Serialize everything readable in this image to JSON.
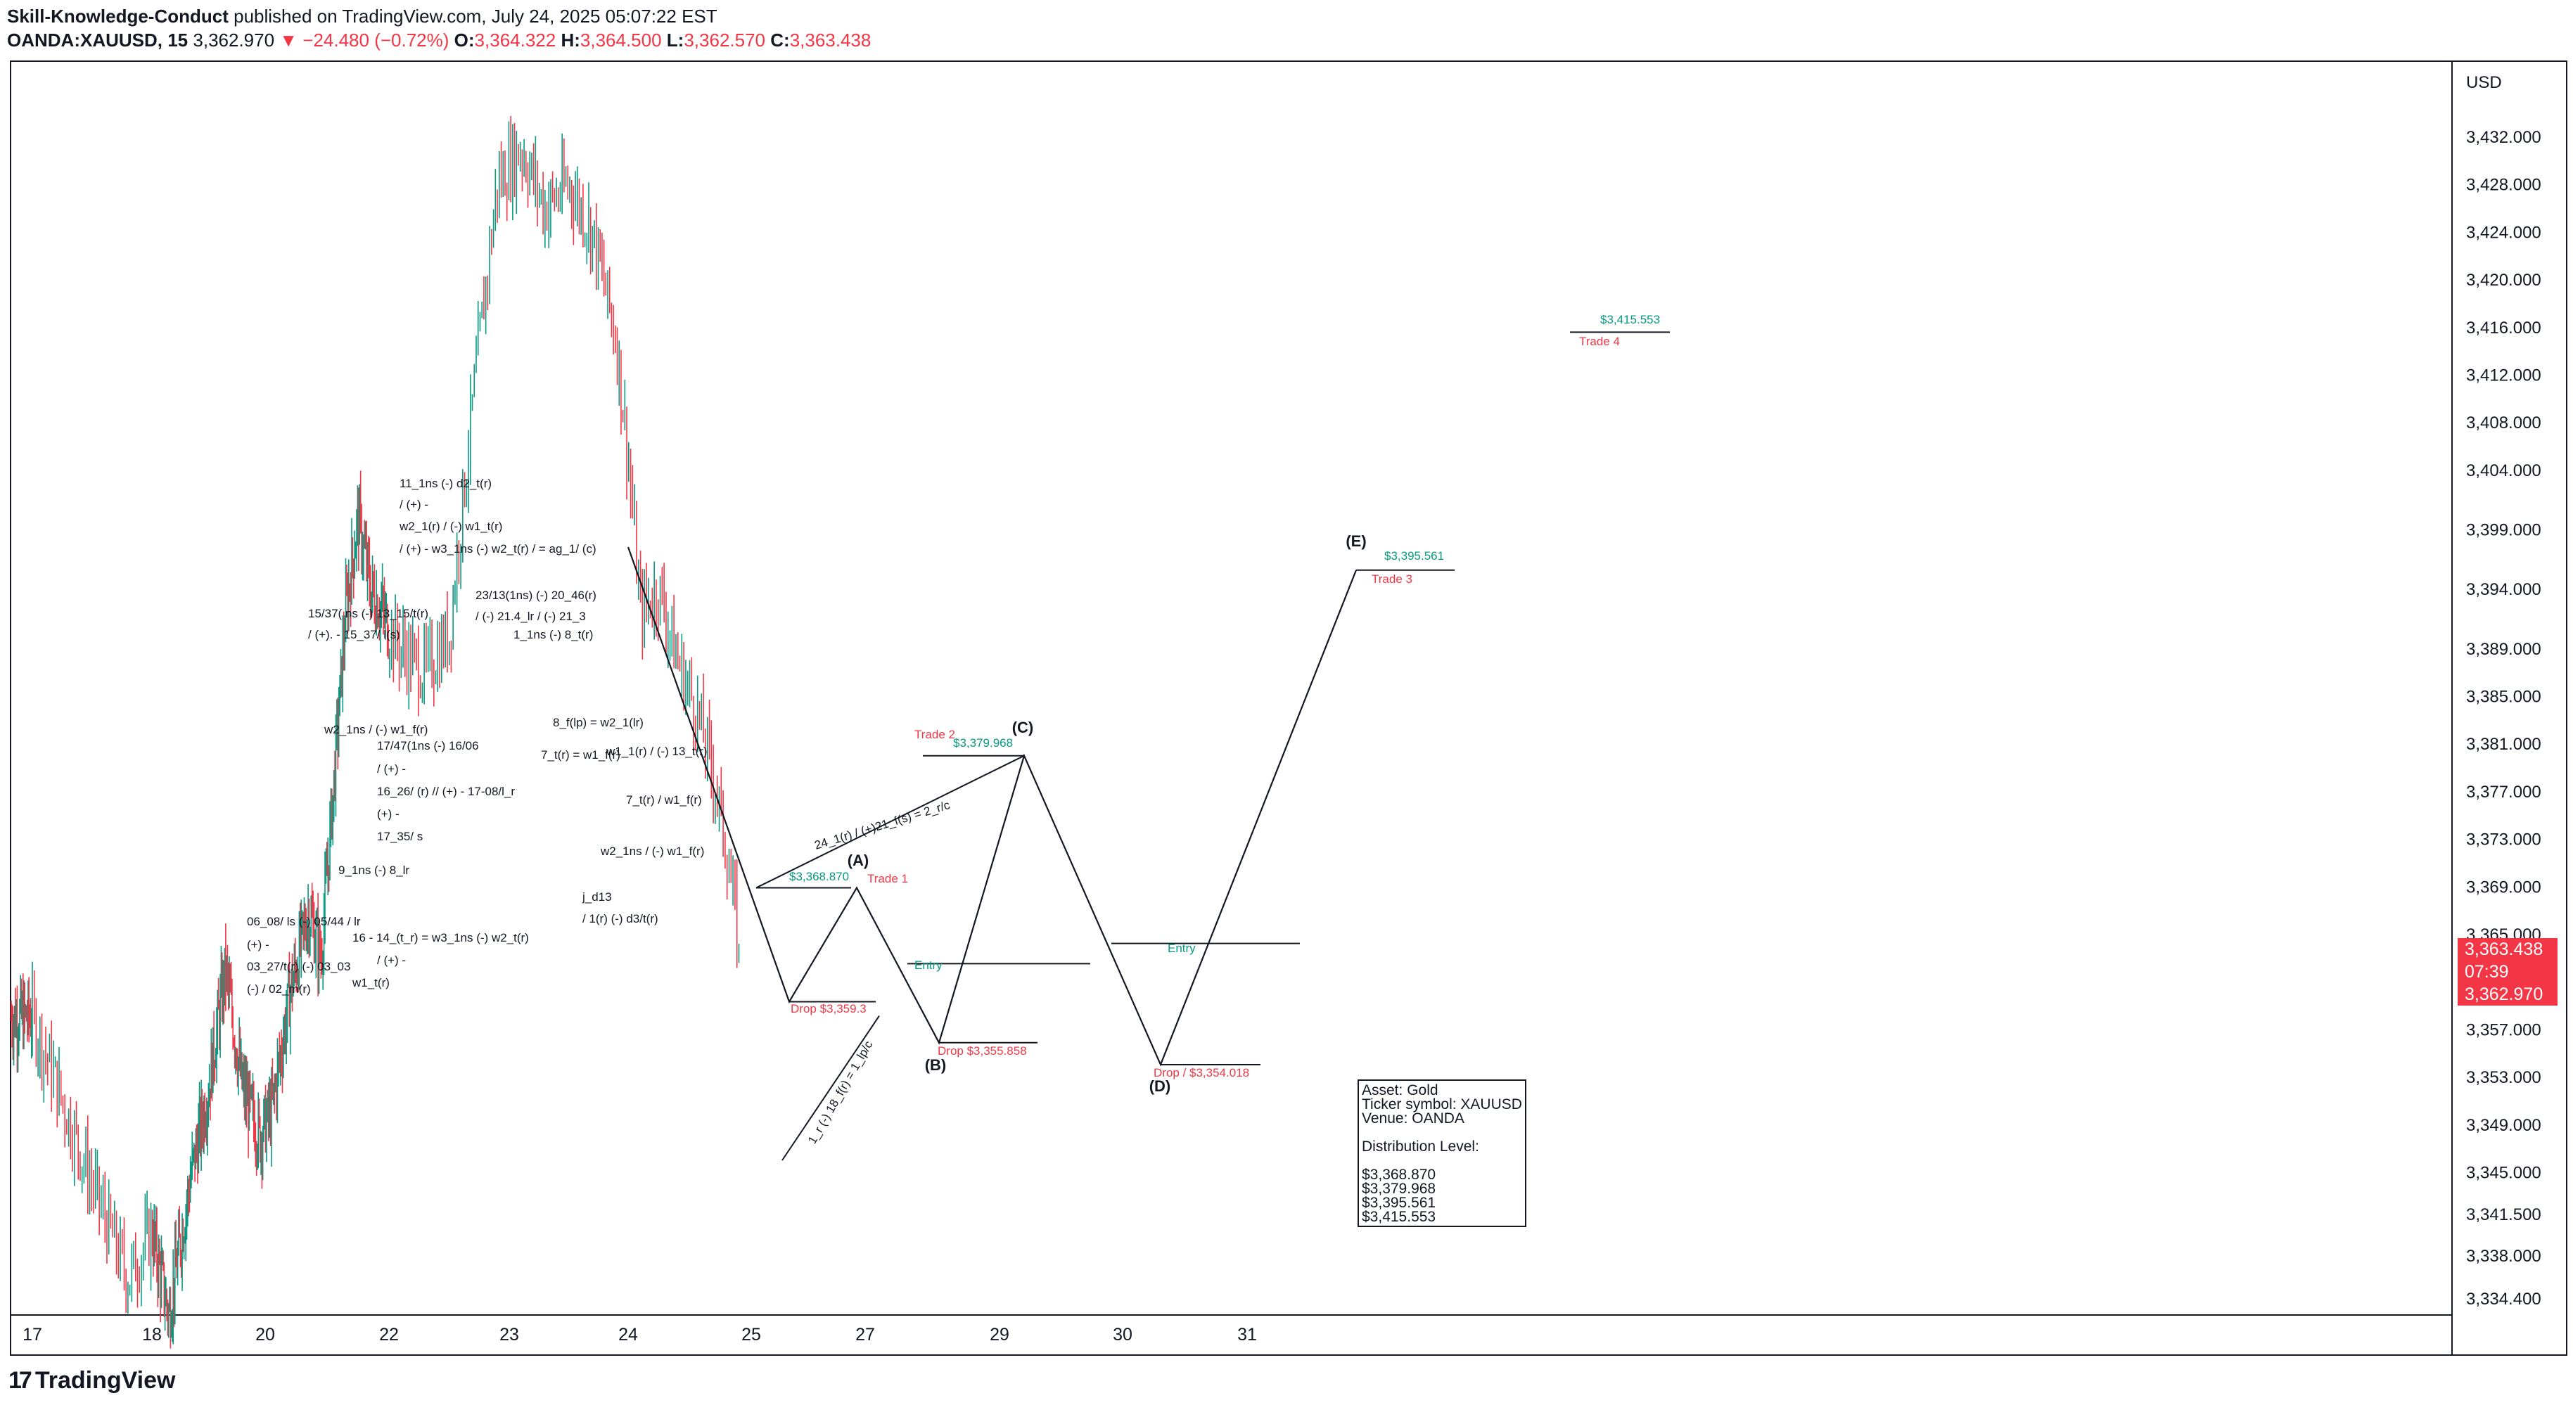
{
  "header": {
    "author": "Skill-Knowledge-Conduct",
    "published": " published on TradingView.com, July 24, 2025 05:07:22 EST",
    "symbol": "OANDA:XAUUSD, 15",
    "price": "3,362.970",
    "change": "−24.480 (−0.72%)",
    "open_label": "O:",
    "open": "3,364.322",
    "high_label": "H:",
    "high": "3,364.500",
    "low_label": "L:",
    "low": "3,362.570",
    "close_label": "C:",
    "close": "3,363.438"
  },
  "price_axis": {
    "currency": "USD",
    "labels": [
      "3,432.000",
      "3,428.000",
      "3,424.000",
      "3,420.000",
      "3,416.000",
      "3,412.000",
      "3,408.000",
      "3,404.000",
      "3,399.000",
      "3,394.000",
      "3,389.000",
      "3,385.000",
      "3,381.000",
      "3,377.000",
      "3,373.000",
      "3,369.000",
      "3,365.000",
      "3,357.000",
      "3,353.000",
      "3,349.000",
      "3,345.000",
      "3,341.500",
      "3,338.000",
      "3,334.400"
    ],
    "last_price": "3,363.438",
    "countdown": "07:39",
    "bid_price": "3,362.970"
  },
  "time_axis": {
    "labels": [
      "17",
      "18",
      "20",
      "22",
      "23",
      "24",
      "25",
      "27",
      "29",
      "30",
      "31"
    ]
  },
  "annotations": {
    "wave_labels": [
      "(A)",
      "(B)",
      "(C)",
      "(D)",
      "(E)"
    ],
    "trade_labels": [
      "Trade 1",
      "Trade 2",
      "Trade 3",
      "Trade 4"
    ],
    "entry_labels": [
      "Entry",
      "Entry"
    ],
    "levels": [
      "$3,368.870",
      "$3,379.968",
      "$3,395.561",
      "$3,415.553"
    ],
    "drops": [
      "Drop $3,359.3",
      "Drop $3,355.858",
      "Drop / $3,354.018"
    ],
    "diag_texts": [
      "24_1(r) / (+)21_f(s) = 2_r/c",
      "1_r (-) 18_f(r) = 1_lp/c"
    ],
    "notes": [
      "11_1ns (-) d2_t(r)",
      "/ (+) -",
      "w2_1(r) / (-) w1_t(r)",
      "/ (+) - w3_1ns (-) w2_t(r) / = ag_1/ (c)",
      "15/37( ns (-) 13_15/t(r)",
      "/ (+). - 15_37/ l(s)",
      "23/13(1ns) (-) 20_46(r)",
      "/ (-) 21.4_lr / (-) 21_3",
      "1_1ns (-) 8_t(r)",
      "w2_1ns / (-) w1_f(r)",
      "17/47(1ns (-) 16/06",
      "/ (+) -",
      "16_26/ (r) // (+) - 17-08/l_r",
      "(+) -",
      "17_35/ s",
      "8_f(lp) = w2_1(lr)",
      "7_t(r) = w1_f(r)",
      "w1_1(r) / (-) 13_t(r)",
      "7_t(r) / w1_f(r)",
      "w2_1ns / (-) w1_f(r)",
      "j_d13",
      "/ 1(r) (-) d3/t(r)",
      "9_1ns (-) 8_lr",
      "06_08/ ls (-) 05/44 / lr",
      "(+) -",
      "16 - 14_(t_r) = w3_1ns (-) w2_t(r)",
      "03_27/t(r) (-) 03_03",
      "/ (+) -",
      "(-) / 02_m(r)",
      "w1_t(r)"
    ]
  },
  "info_box": {
    "lines": [
      "Asset: Gold",
      "Ticker symbol: XAUUSD",
      "Venue: OANDA",
      "",
      "Distribution Level:",
      "",
      "$3,368.870",
      "$3,379.968",
      "$3,395.561",
      "$3,415.553"
    ]
  },
  "logo": "TradingView",
  "chart_data": {
    "type": "candlestick",
    "symbol": "OANDA:XAUUSD",
    "interval": "15",
    "currency": "USD",
    "y_axis_ticks": [
      3432.0,
      3428.0,
      3424.0,
      3420.0,
      3416.0,
      3412.0,
      3408.0,
      3404.0,
      3399.0,
      3394.0,
      3389.0,
      3385.0,
      3381.0,
      3377.0,
      3373.0,
      3369.0,
      3365.0,
      3357.0,
      3353.0,
      3349.0,
      3345.0,
      3341.5,
      3338.0,
      3334.4
    ],
    "x_axis_ticks": [
      "17",
      "18",
      "20",
      "22",
      "23",
      "24",
      "25",
      "27",
      "29",
      "30",
      "31"
    ],
    "ylim": [
      3332.5,
      3436
    ],
    "price_path": [
      {
        "t": 17.0,
        "p": 3358
      },
      {
        "t": 17.5,
        "p": 3344
      },
      {
        "t": 17.8,
        "p": 3336
      },
      {
        "t": 18.0,
        "p": 3340
      },
      {
        "t": 18.3,
        "p": 3333
      },
      {
        "t": 18.7,
        "p": 3345
      },
      {
        "t": 19.0,
        "p": 3352
      },
      {
        "t": 19.3,
        "p": 3362
      },
      {
        "t": 19.6,
        "p": 3352
      },
      {
        "t": 19.9,
        "p": 3348
      },
      {
        "t": 20.1,
        "p": 3350
      },
      {
        "t": 20.4,
        "p": 3360
      },
      {
        "t": 20.7,
        "p": 3367
      },
      {
        "t": 20.9,
        "p": 3363
      },
      {
        "t": 21.1,
        "p": 3377
      },
      {
        "t": 21.3,
        "p": 3392
      },
      {
        "t": 21.5,
        "p": 3400
      },
      {
        "t": 21.7,
        "p": 3394
      },
      {
        "t": 21.9,
        "p": 3392
      },
      {
        "t": 22.1,
        "p": 3389
      },
      {
        "t": 22.3,
        "p": 3387
      },
      {
        "t": 22.5,
        "p": 3390
      },
      {
        "t": 22.7,
        "p": 3410
      },
      {
        "t": 22.9,
        "p": 3428
      },
      {
        "t": 23.1,
        "p": 3431
      },
      {
        "t": 23.3,
        "p": 3426
      },
      {
        "t": 23.5,
        "p": 3428
      },
      {
        "t": 23.7,
        "p": 3424
      },
      {
        "t": 23.9,
        "p": 3415
      },
      {
        "t": 24.0,
        "p": 3405
      },
      {
        "t": 24.1,
        "p": 3392
      },
      {
        "t": 24.25,
        "p": 3394
      },
      {
        "t": 24.4,
        "p": 3388
      },
      {
        "t": 24.55,
        "p": 3384
      },
      {
        "t": 24.7,
        "p": 3378
      },
      {
        "t": 24.8,
        "p": 3372
      },
      {
        "t": 24.9,
        "p": 3364
      }
    ],
    "last_close": 3363.438,
    "projection_path": [
      {
        "point": "start",
        "date": "24",
        "price": 3397.5
      },
      {
        "point": "drop",
        "price": 3359.3
      },
      {
        "point": "(A)",
        "price": 3368.87
      },
      {
        "point": "(B)",
        "price": 3355.858
      },
      {
        "point": "(C)",
        "price": 3379.968
      },
      {
        "point": "(D)",
        "price": 3354.018
      },
      {
        "point": "(E)",
        "price": 3395.561
      }
    ],
    "trade_levels": [
      {
        "name": "Trade 1",
        "price": 3368.87
      },
      {
        "name": "Trade 2",
        "price": 3379.968
      },
      {
        "name": "Trade 3",
        "price": 3395.561
      },
      {
        "name": "Trade 4",
        "price": 3415.553
      }
    ],
    "entry_levels": [
      3362.5,
      3364.2
    ],
    "colors": {
      "up": "#089981",
      "down": "#f23645",
      "line": "#131722"
    }
  }
}
